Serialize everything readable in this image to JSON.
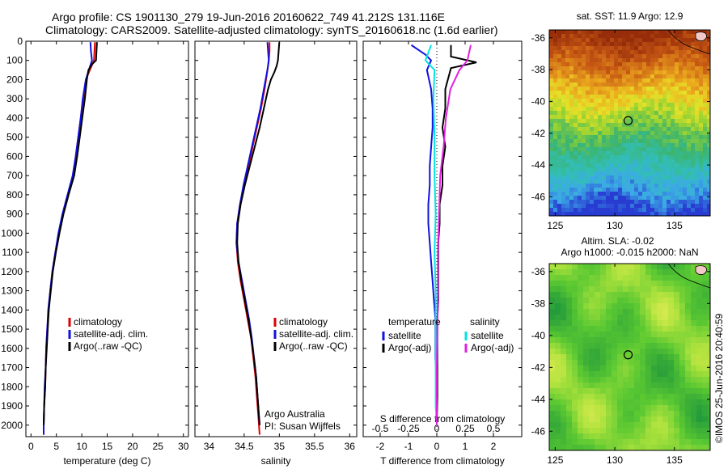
{
  "header": {
    "line1": "Argo profile: CS 1901130_279 19-Jun-2016 20160622_749 41.212S 131.116E",
    "line2": "Climatology: CARS2009. Satellite-adjusted climatology: synTS_20160618.nc (1.6d earlier)"
  },
  "colors": {
    "climatology": "#e00000",
    "satellite": "#1010e0",
    "argo": "#000000",
    "cyan": "#00e5e5",
    "magenta": "#e020e0"
  },
  "chart_data": [
    {
      "type": "line",
      "name_id": "temperature-panel",
      "title": "",
      "xlabel": "temperature (deg C)",
      "ylabel": "",
      "xlim": [
        -1,
        31
      ],
      "ylim": [
        2060,
        0
      ],
      "xticks": [
        0,
        5,
        10,
        15,
        20,
        25,
        30
      ],
      "yticks": [
        0,
        100,
        200,
        300,
        400,
        500,
        600,
        700,
        800,
        900,
        1000,
        1100,
        1200,
        1300,
        1400,
        1500,
        1600,
        1700,
        1800,
        1900,
        2000
      ],
      "legend": [
        "climatology",
        "satellite-adj. clim.",
        "Argo(..raw -QC)"
      ],
      "legend_placement": "lower-center",
      "series": [
        {
          "name": "climatology",
          "color_key": "climatology",
          "points": [
            [
              12.6,
              5
            ],
            [
              12.5,
              50
            ],
            [
              12.4,
              100
            ],
            [
              11.6,
              150
            ],
            [
              10.8,
              200
            ],
            [
              10.3,
              300
            ],
            [
              9.8,
              400
            ],
            [
              9.3,
              500
            ],
            [
              8.8,
              600
            ],
            [
              8.3,
              700
            ],
            [
              7.3,
              800
            ],
            [
              6.3,
              900
            ],
            [
              5.5,
              1000
            ],
            [
              4.8,
              1100
            ],
            [
              4.2,
              1200
            ],
            [
              3.8,
              1300
            ],
            [
              3.5,
              1400
            ],
            [
              3.2,
              1500
            ],
            [
              3.0,
              1600
            ],
            [
              2.9,
              1700
            ],
            [
              2.8,
              1800
            ],
            [
              2.6,
              1900
            ],
            [
              2.5,
              2000
            ],
            [
              2.5,
              2050
            ]
          ]
        },
        {
          "name": "satellite-adj. clim.",
          "color_key": "satellite",
          "points": [
            [
              11.7,
              5
            ],
            [
              11.8,
              50
            ],
            [
              12.0,
              100
            ],
            [
              11.4,
              150
            ],
            [
              10.8,
              200
            ],
            [
              10.2,
              300
            ],
            [
              9.8,
              400
            ],
            [
              9.3,
              500
            ],
            [
              8.8,
              600
            ],
            [
              8.2,
              700
            ],
            [
              7.2,
              800
            ],
            [
              6.2,
              900
            ],
            [
              5.4,
              1000
            ],
            [
              4.8,
              1100
            ],
            [
              4.2,
              1200
            ],
            [
              3.8,
              1300
            ],
            [
              3.4,
              1400
            ],
            [
              3.2,
              1500
            ],
            [
              3.0,
              1600
            ],
            [
              2.9,
              1700
            ],
            [
              2.7,
              1800
            ],
            [
              2.6,
              1900
            ],
            [
              2.5,
              2000
            ],
            [
              2.5,
              2050
            ]
          ]
        },
        {
          "name": "Argo(..raw -QC)",
          "color_key": "argo",
          "points": [
            [
              13.0,
              5
            ],
            [
              12.9,
              50
            ],
            [
              12.8,
              100
            ],
            [
              12.0,
              120
            ],
            [
              11.3,
              150
            ],
            [
              11.0,
              200
            ],
            [
              10.6,
              300
            ],
            [
              10.1,
              400
            ],
            [
              9.6,
              500
            ],
            [
              9.1,
              600
            ],
            [
              8.5,
              700
            ],
            [
              7.4,
              800
            ],
            [
              6.4,
              900
            ],
            [
              5.6,
              1000
            ],
            [
              4.9,
              1100
            ],
            [
              4.3,
              1200
            ],
            [
              3.9,
              1300
            ],
            [
              3.5,
              1400
            ],
            [
              3.3,
              1500
            ],
            [
              3.1,
              1600
            ],
            [
              2.9,
              1700
            ],
            [
              2.8,
              1800
            ],
            [
              2.6,
              1900
            ],
            [
              2.5,
              2000
            ]
          ]
        }
      ]
    },
    {
      "type": "line",
      "name_id": "salinity-panel",
      "title": "",
      "xlabel": "salinity",
      "ylabel": "",
      "xlim": [
        33.8,
        36.1
      ],
      "ylim": [
        2060,
        0
      ],
      "xticks": [
        34,
        34.5,
        35,
        35.5,
        36
      ],
      "xticklabels": [
        "34",
        "34.5",
        "35",
        "35.5",
        "36"
      ],
      "legend": [
        "climatology",
        "satellite-adj. clim.",
        "Argo(..raw -QC)"
      ],
      "legend_placement": "lower-right",
      "annotation": [
        "Argo Australia",
        "PI: Susan Wijffels"
      ],
      "series": [
        {
          "name": "climatology",
          "color_key": "climatology",
          "points": [
            [
              34.86,
              5
            ],
            [
              34.86,
              50
            ],
            [
              34.85,
              100
            ],
            [
              34.83,
              150
            ],
            [
              34.79,
              250
            ],
            [
              34.74,
              350
            ],
            [
              34.68,
              450
            ],
            [
              34.62,
              550
            ],
            [
              34.56,
              650
            ],
            [
              34.5,
              750
            ],
            [
              34.44,
              850
            ],
            [
              34.4,
              950
            ],
            [
              34.39,
              1050
            ],
            [
              34.41,
              1150
            ],
            [
              34.45,
              1250
            ],
            [
              34.5,
              1350
            ],
            [
              34.55,
              1450
            ],
            [
              34.6,
              1550
            ],
            [
              34.63,
              1650
            ],
            [
              34.66,
              1750
            ],
            [
              34.68,
              1850
            ],
            [
              34.7,
              1950
            ],
            [
              34.72,
              2050
            ]
          ]
        },
        {
          "name": "satellite-adj. clim.",
          "color_key": "satellite",
          "points": [
            [
              34.83,
              5
            ],
            [
              34.84,
              50
            ],
            [
              34.85,
              100
            ],
            [
              34.83,
              150
            ],
            [
              34.78,
              250
            ],
            [
              34.73,
              350
            ],
            [
              34.67,
              450
            ],
            [
              34.61,
              550
            ],
            [
              34.55,
              650
            ],
            [
              34.49,
              750
            ],
            [
              34.44,
              850
            ],
            [
              34.4,
              950
            ],
            [
              34.39,
              1050
            ],
            [
              34.42,
              1150
            ],
            [
              34.47,
              1250
            ],
            [
              34.52,
              1350
            ],
            [
              34.57,
              1450
            ],
            [
              34.61,
              1550
            ],
            [
              34.64,
              1650
            ],
            [
              34.67,
              1750
            ],
            [
              34.69,
              1850
            ],
            [
              34.71,
              1950
            ],
            [
              34.72,
              2000
            ]
          ]
        },
        {
          "name": "Argo(..raw -QC)",
          "color_key": "argo",
          "points": [
            [
              35.0,
              5
            ],
            [
              34.99,
              50
            ],
            [
              34.98,
              100
            ],
            [
              34.96,
              130
            ],
            [
              34.93,
              160
            ],
            [
              34.88,
              200
            ],
            [
              34.84,
              250
            ],
            [
              34.78,
              350
            ],
            [
              34.72,
              450
            ],
            [
              34.65,
              550
            ],
            [
              34.58,
              650
            ],
            [
              34.51,
              750
            ],
            [
              34.45,
              850
            ],
            [
              34.41,
              950
            ],
            [
              34.4,
              1050
            ],
            [
              34.42,
              1150
            ],
            [
              34.46,
              1250
            ],
            [
              34.51,
              1350
            ],
            [
              34.56,
              1450
            ],
            [
              34.6,
              1550
            ],
            [
              34.64,
              1650
            ],
            [
              34.67,
              1750
            ],
            [
              34.69,
              1850
            ],
            [
              34.71,
              1950
            ],
            [
              34.72,
              2000
            ]
          ]
        }
      ]
    },
    {
      "type": "line",
      "name_id": "difference-panel",
      "title": "",
      "xlabel": "T difference from climatology",
      "xlabel_top": "S difference from climatology",
      "ylabel": "",
      "xlim": [
        -2.6,
        3.0
      ],
      "ylim": [
        2060,
        0
      ],
      "xticks": [
        -2,
        -1,
        0,
        1,
        2
      ],
      "xticks_top": [
        -0.5,
        -0.25,
        0,
        0.25,
        0.5
      ],
      "xticklabels_top": [
        "-0.5",
        "-0.25",
        "0",
        "0.25",
        "0.5"
      ],
      "legend_temperature": {
        "heading": "temperature",
        "entries": [
          "satellite",
          "Argo(-adj)"
        ]
      },
      "legend_salinity": {
        "heading": "salinity",
        "entries": [
          "satellite",
          "Argo(-adj)"
        ]
      },
      "series": [
        {
          "name": "satellite",
          "quantity": "temperature",
          "color_key": "satellite",
          "points": [
            [
              -0.9,
              20
            ],
            [
              -0.4,
              70
            ],
            [
              -0.2,
              100
            ],
            [
              -0.35,
              150
            ],
            [
              -0.2,
              250
            ],
            [
              -0.15,
              350
            ],
            [
              -0.15,
              450
            ],
            [
              -0.2,
              550
            ],
            [
              -0.25,
              650
            ],
            [
              -0.25,
              750
            ],
            [
              -0.3,
              850
            ],
            [
              -0.3,
              950
            ],
            [
              -0.25,
              1050
            ],
            [
              -0.2,
              1150
            ],
            [
              -0.15,
              1250
            ],
            [
              -0.1,
              1350
            ],
            [
              -0.05,
              1450
            ],
            [
              -0.05,
              1550
            ],
            [
              -0.05,
              1650
            ],
            [
              0,
              1800
            ],
            [
              0,
              2000
            ]
          ]
        },
        {
          "name": "Argo(-adj)",
          "quantity": "temperature",
          "color_key": "argo",
          "points": [
            [
              0.5,
              20
            ],
            [
              0.5,
              80
            ],
            [
              1.4,
              110
            ],
            [
              0.5,
              140
            ],
            [
              0.3,
              250
            ],
            [
              0.3,
              350
            ],
            [
              0.2,
              450
            ],
            [
              0.3,
              550
            ],
            [
              0.2,
              650
            ],
            [
              0.2,
              750
            ],
            [
              0.1,
              850
            ],
            [
              0.1,
              950
            ],
            [
              0.05,
              1050
            ],
            [
              0.05,
              1150
            ],
            [
              0.05,
              1250
            ],
            [
              0.05,
              1350
            ],
            [
              0.02,
              1450
            ],
            [
              0.02,
              1550
            ],
            [
              0.02,
              1700
            ],
            [
              0.02,
              1850
            ],
            [
              0,
              2000
            ]
          ]
        },
        {
          "name": "satellite",
          "quantity": "salinity",
          "color_key": "cyan",
          "points": [
            [
              -0.05,
              20
            ],
            [
              -0.1,
              100
            ],
            [
              -0.02,
              150
            ],
            [
              -0.03,
              300
            ],
            [
              -0.02,
              500
            ],
            [
              -0.02,
              700
            ],
            [
              -0.01,
              900
            ],
            [
              -0.02,
              1100
            ],
            [
              -0.01,
              1300
            ],
            [
              -0.01,
              1500
            ],
            [
              -0.01,
              1700
            ],
            [
              -0.01,
              1900
            ],
            [
              0,
              2000
            ]
          ]
        },
        {
          "name": "Argo(-adj)",
          "quantity": "salinity",
          "color_key": "magenta",
          "points": [
            [
              0.3,
              20
            ],
            [
              0.27,
              100
            ],
            [
              0.2,
              150
            ],
            [
              0.12,
              250
            ],
            [
              0.08,
              400
            ],
            [
              0.06,
              550
            ],
            [
              0.03,
              700
            ],
            [
              0.02,
              900
            ],
            [
              0.01,
              1100
            ],
            [
              0.01,
              1300
            ],
            [
              0.005,
              1500
            ],
            [
              0,
              1700
            ],
            [
              0,
              2000
            ]
          ]
        }
      ]
    },
    {
      "type": "heatmap",
      "name_id": "sst-map",
      "title": "sat. SST: 11.9 Argo: 12.9",
      "xlim": [
        124.5,
        138
      ],
      "ylim": [
        -47.2,
        -35.5
      ],
      "xticks": [
        125,
        130,
        135
      ],
      "yticks": [
        -36,
        -38,
        -40,
        -42,
        -44,
        -46
      ],
      "marker": {
        "lon": 131.116,
        "lat": -41.212
      }
    },
    {
      "type": "heatmap",
      "name_id": "sla-map",
      "title": "Altim. SLA: -0.02",
      "subtitle": "Argo h1000: -0.015 h2000: NaN",
      "xlim": [
        124.5,
        138
      ],
      "ylim": [
        -47.2,
        -35.5
      ],
      "xticks": [
        125,
        130,
        135
      ],
      "yticks": [
        -36,
        -38,
        -40,
        -42,
        -44,
        -46
      ],
      "marker": {
        "lon": 131.116,
        "lat": -41.212
      }
    }
  ],
  "credit": "©IMOS 25-Jun-2016 20:40:59"
}
